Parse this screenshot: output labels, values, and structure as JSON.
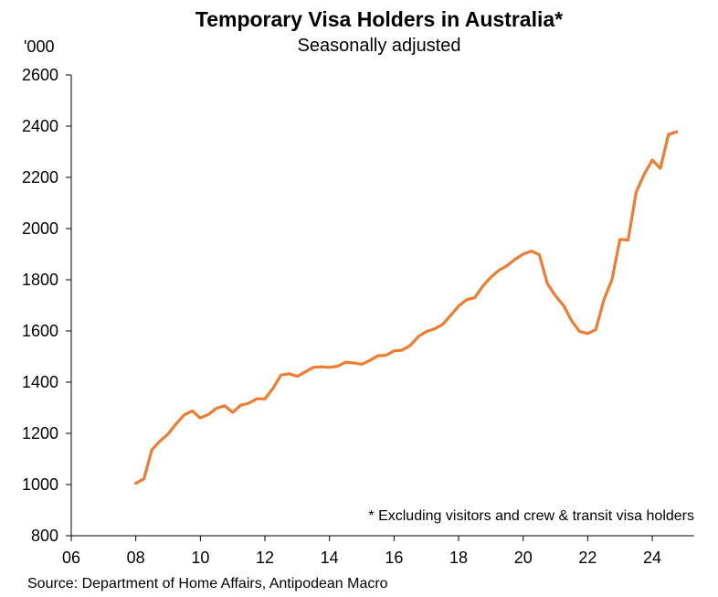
{
  "chart_data": {
    "type": "line",
    "title": "Temporary Visa Holders in Australia*",
    "subtitle": "Seasonally adjusted",
    "unit_label": "'000",
    "footnote": "* Excluding visitors and crew & transit visa holders",
    "source": "Source: Department of Home Affairs, Antipodean Macro",
    "xlabel": "",
    "ylabel": "",
    "xlim": [
      2006,
      2025.3
    ],
    "ylim": [
      800,
      2600
    ],
    "x_ticks": [
      2006,
      2008,
      2010,
      2012,
      2014,
      2016,
      2018,
      2020,
      2022,
      2024
    ],
    "x_tick_labels": [
      "06",
      "08",
      "10",
      "12",
      "14",
      "16",
      "18",
      "20",
      "22",
      "24"
    ],
    "y_ticks": [
      800,
      1000,
      1200,
      1400,
      1600,
      1800,
      2000,
      2200,
      2400,
      2600
    ],
    "y_tick_labels": [
      "800",
      "1000",
      "1200",
      "1400",
      "1600",
      "1800",
      "2000",
      "2200",
      "2400",
      "2600"
    ],
    "grid": false,
    "legend": "none",
    "series": [
      {
        "color": "#ED7D31",
        "x": [
          2008.0,
          2008.25,
          2008.5,
          2008.75,
          2009.0,
          2009.25,
          2009.5,
          2009.75,
          2010.0,
          2010.25,
          2010.5,
          2010.75,
          2011.0,
          2011.25,
          2011.5,
          2011.75,
          2012.0,
          2012.25,
          2012.5,
          2012.75,
          2013.0,
          2013.25,
          2013.5,
          2013.75,
          2014.0,
          2014.25,
          2014.5,
          2014.75,
          2015.0,
          2015.25,
          2015.5,
          2015.75,
          2016.0,
          2016.25,
          2016.5,
          2016.75,
          2017.0,
          2017.25,
          2017.5,
          2017.75,
          2018.0,
          2018.25,
          2018.5,
          2018.75,
          2019.0,
          2019.25,
          2019.5,
          2019.75,
          2020.0,
          2020.25,
          2020.5,
          2020.75,
          2021.0,
          2021.25,
          2021.5,
          2021.75,
          2022.0,
          2022.25,
          2022.5,
          2022.75,
          2023.0,
          2023.25,
          2023.5,
          2023.75,
          2024.0,
          2024.25,
          2024.5,
          2024.75
        ],
        "values": [
          1005,
          1022,
          1136,
          1170,
          1197,
          1237,
          1272,
          1288,
          1260,
          1274,
          1298,
          1308,
          1282,
          1310,
          1318,
          1335,
          1335,
          1376,
          1428,
          1433,
          1423,
          1440,
          1458,
          1460,
          1458,
          1462,
          1478,
          1475,
          1470,
          1485,
          1503,
          1505,
          1522,
          1525,
          1543,
          1578,
          1598,
          1608,
          1625,
          1660,
          1697,
          1722,
          1730,
          1775,
          1810,
          1837,
          1855,
          1880,
          1900,
          1912,
          1898,
          1785,
          1737,
          1700,
          1640,
          1598,
          1590,
          1605,
          1722,
          1800,
          1958,
          1955,
          2142,
          2212,
          2268,
          2235,
          2367,
          2378
        ]
      }
    ]
  }
}
